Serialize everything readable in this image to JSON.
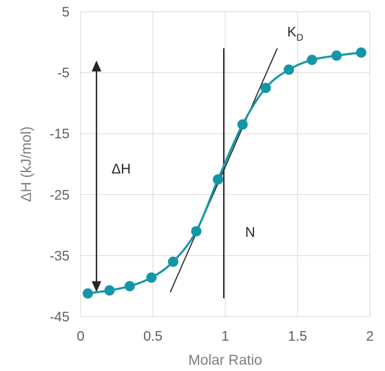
{
  "chart_data": {
    "type": "scatter",
    "xlabel": "Molar Ratio",
    "ylabel": "ΔH (kJ/mol)",
    "xlim": [
      0,
      2
    ],
    "ylim": [
      -45,
      5
    ],
    "xticks": [
      0,
      0.5,
      1,
      1.5,
      2
    ],
    "yticks": [
      5,
      -5,
      -15,
      -25,
      -35,
      -45
    ],
    "xtick_labels": [
      "0",
      "0.5",
      "1",
      "1.5",
      "2"
    ],
    "ytick_labels": [
      "5",
      "-5",
      "-15",
      "-25",
      "-35",
      "-45"
    ],
    "grid": true,
    "series": [
      {
        "color": "#1596a8",
        "x": [
          0.05,
          0.2,
          0.34,
          0.49,
          0.64,
          0.8,
          0.95,
          1.12,
          1.28,
          1.44,
          1.6,
          1.77,
          1.94
        ],
        "y": [
          -41.2,
          -40.7,
          -40.0,
          -38.6,
          -36.0,
          -31.0,
          -22.5,
          -13.5,
          -7.5,
          -4.5,
          -2.9,
          -2.2,
          -1.7
        ]
      }
    ],
    "annotations": {
      "dH_label": "ΔH",
      "N_label": "N",
      "KD_main": "K",
      "KD_sub": "D",
      "dH_arrow": {
        "x": 0.11,
        "y1": -3.0,
        "y2": -41.0
      },
      "N_line": {
        "x": 0.99,
        "y1": -1.0,
        "y2": -42.0
      },
      "KD_line": {
        "x1": 0.62,
        "y1": -41.0,
        "x2": 1.36,
        "y2": -1.0
      }
    }
  }
}
